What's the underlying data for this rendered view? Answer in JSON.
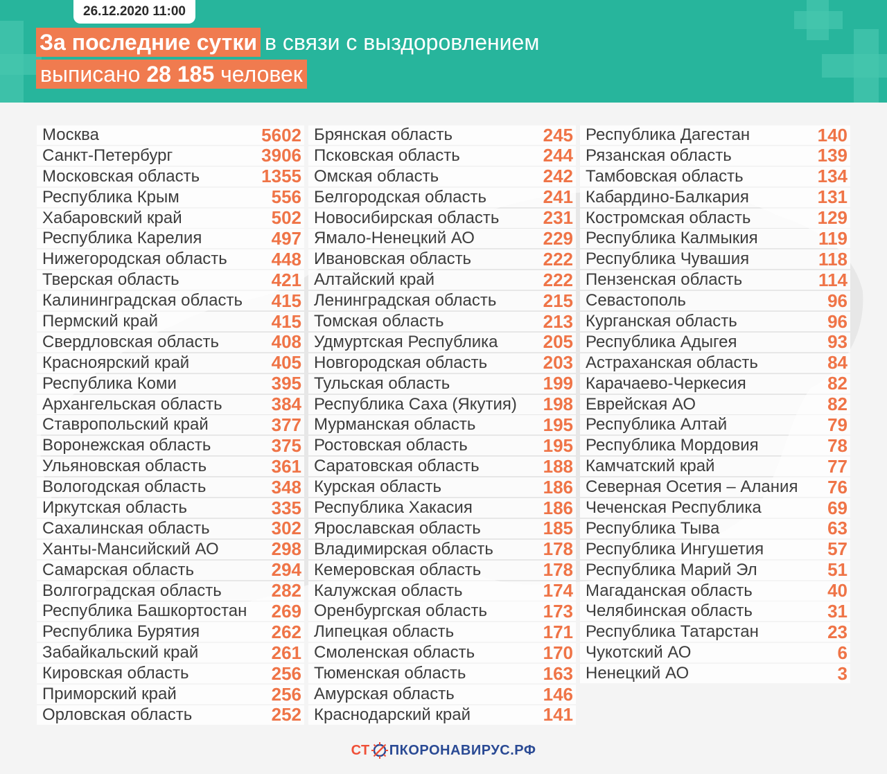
{
  "date": "26.12.2020 11:00",
  "headline": {
    "highlight": "За последние сутки",
    "rest": "в связи с выздоровлением",
    "line2_prefix": "выписано",
    "line2_number": "28 185",
    "line2_suffix": "человек"
  },
  "columns": [
    [
      {
        "region": "Москва",
        "value": "5602"
      },
      {
        "region": "Санкт-Петербург",
        "value": "3906"
      },
      {
        "region": "Московская область",
        "value": "1355"
      },
      {
        "region": "Республика Крым",
        "value": "556"
      },
      {
        "region": "Хабаровский край",
        "value": "502"
      },
      {
        "region": "Республика Карелия",
        "value": "497"
      },
      {
        "region": "Нижегородская область",
        "value": "448"
      },
      {
        "region": "Тверская область",
        "value": "421"
      },
      {
        "region": "Калининградская область",
        "value": "415"
      },
      {
        "region": "Пермский край",
        "value": "415"
      },
      {
        "region": "Свердловская область",
        "value": "408"
      },
      {
        "region": "Красноярский край",
        "value": "405"
      },
      {
        "region": "Республика Коми",
        "value": "395"
      },
      {
        "region": "Архангельская область",
        "value": "384"
      },
      {
        "region": "Ставропольский край",
        "value": "377"
      },
      {
        "region": "Воронежская область",
        "value": "375"
      },
      {
        "region": "Ульяновская область",
        "value": "361"
      },
      {
        "region": "Вологодская область",
        "value": "348"
      },
      {
        "region": "Иркутская область",
        "value": "335"
      },
      {
        "region": "Сахалинская область",
        "value": "302"
      },
      {
        "region": "Ханты-Мансийский АО",
        "value": "298"
      },
      {
        "region": "Самарская область",
        "value": "294"
      },
      {
        "region": "Волгоградская область",
        "value": "282"
      },
      {
        "region": "Республика Башкортостан",
        "value": "269"
      },
      {
        "region": "Республика Бурятия",
        "value": "262"
      },
      {
        "region": "Забайкальский край",
        "value": "261"
      },
      {
        "region": "Кировская область",
        "value": "256"
      },
      {
        "region": "Приморский край",
        "value": "256"
      },
      {
        "region": "Орловская область",
        "value": "252"
      }
    ],
    [
      {
        "region": "Брянская область",
        "value": "245"
      },
      {
        "region": "Псковская область",
        "value": "244"
      },
      {
        "region": "Омская область",
        "value": "242"
      },
      {
        "region": "Белгородская область",
        "value": "241"
      },
      {
        "region": "Новосибирская область",
        "value": "231"
      },
      {
        "region": "Ямало-Ненецкий АО",
        "value": "229"
      },
      {
        "region": "Ивановская область",
        "value": "222"
      },
      {
        "region": "Алтайский край",
        "value": "222"
      },
      {
        "region": "Ленинградская область",
        "value": "215"
      },
      {
        "region": "Томская область",
        "value": "213"
      },
      {
        "region": "Удмуртская Республика",
        "value": "205"
      },
      {
        "region": "Новгородская область",
        "value": "203"
      },
      {
        "region": "Тульская область",
        "value": "199"
      },
      {
        "region": "Республика Саха (Якутия)",
        "value": "198"
      },
      {
        "region": "Мурманская область",
        "value": "195"
      },
      {
        "region": "Ростовская область",
        "value": "195"
      },
      {
        "region": "Саратовская область",
        "value": "188"
      },
      {
        "region": "Курская область",
        "value": "186"
      },
      {
        "region": "Республика Хакасия",
        "value": "186"
      },
      {
        "region": "Ярославская область",
        "value": "185"
      },
      {
        "region": "Владимирская область",
        "value": "178"
      },
      {
        "region": "Кемеровская область",
        "value": "178"
      },
      {
        "region": "Калужская область",
        "value": "174"
      },
      {
        "region": "Оренбургская область",
        "value": "173"
      },
      {
        "region": "Липецкая область",
        "value": "171"
      },
      {
        "region": "Смоленская область",
        "value": "170"
      },
      {
        "region": "Тюменская область",
        "value": "163"
      },
      {
        "region": "Амурская область",
        "value": "146"
      },
      {
        "region": "Краснодарский край",
        "value": "141"
      }
    ],
    [
      {
        "region": "Республика Дагестан",
        "value": "140"
      },
      {
        "region": "Рязанская область",
        "value": "139"
      },
      {
        "region": "Тамбовская область",
        "value": "134"
      },
      {
        "region": "Кабардино-Балкария",
        "value": "131"
      },
      {
        "region": "Костромская область",
        "value": "129"
      },
      {
        "region": "Республика Калмыкия",
        "value": "119"
      },
      {
        "region": "Республика Чувашия",
        "value": "118"
      },
      {
        "region": "Пензенская область",
        "value": "114"
      },
      {
        "region": "Севастополь",
        "value": "96"
      },
      {
        "region": "Курганская область",
        "value": "96"
      },
      {
        "region": "Республика Адыгея",
        "value": "93"
      },
      {
        "region": "Астраханская область",
        "value": "84"
      },
      {
        "region": "Карачаево-Черкесия",
        "value": "82"
      },
      {
        "region": "Еврейская АО",
        "value": "82"
      },
      {
        "region": "Республика Алтай",
        "value": "79"
      },
      {
        "region": "Республика Мордовия",
        "value": "78"
      },
      {
        "region": "Камчатский край",
        "value": "77"
      },
      {
        "region": "Северная Осетия – Алания",
        "value": "76"
      },
      {
        "region": "Чеченская Республика",
        "value": "69"
      },
      {
        "region": "Республика Тыва",
        "value": "63"
      },
      {
        "region": "Республика Ингушетия",
        "value": "57"
      },
      {
        "region": "Республика Марий Эл",
        "value": "51"
      },
      {
        "region": "Магаданская область",
        "value": "40"
      },
      {
        "region": "Челябинская область",
        "value": "31"
      },
      {
        "region": "Республика Татарстан",
        "value": "23"
      },
      {
        "region": "Чукотский АО",
        "value": "6"
      },
      {
        "region": "Ненецкий АО",
        "value": "3"
      }
    ]
  ],
  "footer": {
    "logo_part1": "СТ",
    "logo_part2": "ПКОРОНАВИРУС.РФ"
  },
  "colors": {
    "header_bg": "#27b59c",
    "accent_orange": "#f07b4f",
    "value_orange": "#ef7447",
    "logo_red": "#ef4f37",
    "logo_blue": "#2a4a94"
  }
}
